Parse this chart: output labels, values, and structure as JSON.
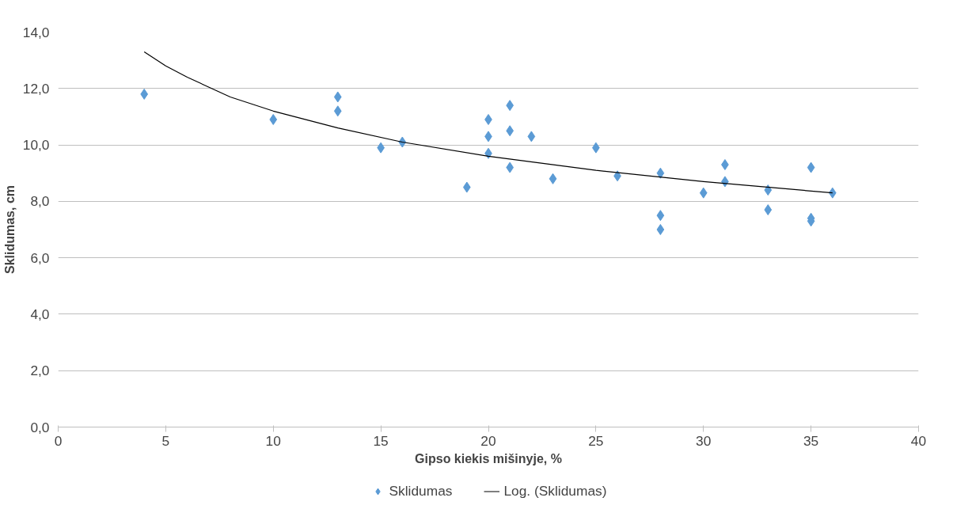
{
  "chart_data": {
    "type": "scatter",
    "xlabel": "Gipso kiekis mišinyje, %",
    "ylabel": "Sklidumas, cm",
    "xlim": [
      0,
      40
    ],
    "xticks": [
      0,
      5,
      10,
      15,
      20,
      25,
      30,
      35,
      40
    ],
    "ylim": [
      0,
      14
    ],
    "yticks": [
      {
        "value": 0,
        "label": "0,0"
      },
      {
        "value": 2,
        "label": "2,0"
      },
      {
        "value": 4,
        "label": "4,0"
      },
      {
        "value": 6,
        "label": "6,0"
      },
      {
        "value": 8,
        "label": "8,0"
      },
      {
        "value": 10,
        "label": "10,0"
      },
      {
        "value": 12,
        "label": "12,0"
      },
      {
        "value": 14,
        "label": "14,0"
      }
    ],
    "grid": "y",
    "legend": "bottom",
    "series": [
      {
        "name": "Sklidumas",
        "marker": "diamond",
        "color": "#5b9bd5",
        "x": [
          4,
          10,
          13,
          13,
          15,
          16,
          19,
          20,
          20,
          20,
          21,
          21,
          21,
          22,
          23,
          25,
          26,
          28,
          28,
          28,
          30,
          31,
          31,
          33,
          33,
          35,
          35,
          35,
          36
        ],
        "values": [
          11.8,
          10.9,
          11.7,
          11.2,
          9.9,
          10.1,
          8.5,
          10.9,
          10.3,
          9.7,
          11.4,
          10.5,
          9.2,
          10.3,
          8.8,
          9.9,
          8.9,
          9.0,
          7.5,
          7.0,
          8.3,
          9.3,
          8.7,
          8.4,
          7.7,
          9.2,
          7.4,
          7.3,
          8.3
        ]
      },
      {
        "name": "Log. (Sklidumas)",
        "type": "line",
        "marker": "none",
        "color": "#000000",
        "x": [
          4,
          5,
          6,
          8,
          10,
          13,
          16,
          20,
          25,
          30,
          36
        ],
        "values": [
          13.3,
          12.8,
          12.4,
          11.7,
          11.2,
          10.6,
          10.1,
          9.6,
          9.1,
          8.7,
          8.3
        ]
      }
    ]
  }
}
